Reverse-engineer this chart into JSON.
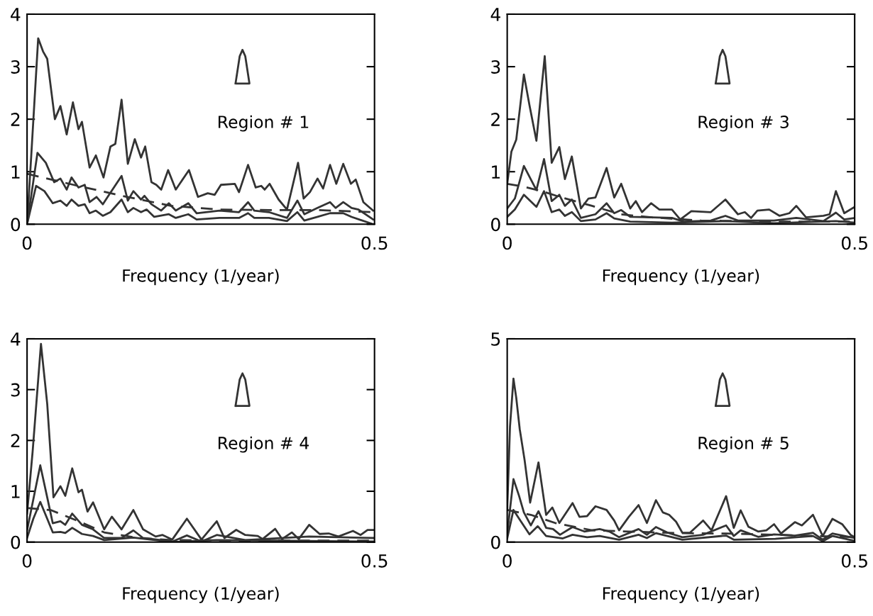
{
  "chart_data": [
    {
      "type": "line",
      "xlabel": "Frequency (1/year)",
      "annotations": [
        "Region # 1"
      ],
      "xlim": [
        0,
        0.5
      ],
      "xticks": [
        0,
        0.5
      ],
      "ylim": [
        0,
        4
      ],
      "yticks": [
        0,
        1,
        2,
        3,
        4
      ],
      "grid": false,
      "series": [
        {
          "color": "#333333",
          "line_style": "solid",
          "x": [
            0,
            0.006,
            0.016,
            0.023,
            0.029,
            0.04,
            0.048,
            0.057,
            0.066,
            0.074,
            0.079,
            0.09,
            0.099,
            0.11,
            0.12,
            0.127,
            0.136,
            0.145,
            0.155,
            0.164,
            0.17,
            0.179,
            0.186,
            0.193,
            0.203,
            0.214,
            0.233,
            0.246,
            0.26,
            0.27,
            0.279,
            0.299,
            0.305,
            0.318,
            0.329,
            0.337,
            0.342,
            0.349,
            0.362,
            0.374,
            0.39,
            0.398,
            0.407,
            0.418,
            0.426,
            0.436,
            0.445,
            0.455,
            0.466,
            0.473,
            0.484,
            0.498
          ],
          "values": [
            0,
            1.3,
            3.54,
            3.29,
            3.15,
            2.0,
            2.25,
            1.71,
            2.32,
            1.81,
            1.95,
            1.08,
            1.31,
            0.89,
            1.48,
            1.53,
            2.37,
            1.15,
            1.62,
            1.27,
            1.48,
            0.8,
            0.75,
            0.66,
            1.03,
            0.66,
            1.03,
            0.52,
            0.59,
            0.56,
            0.75,
            0.77,
            0.61,
            1.13,
            0.7,
            0.73,
            0.66,
            0.77,
            0.47,
            0.28,
            1.17,
            0.49,
            0.61,
            0.87,
            0.68,
            1.13,
            0.77,
            1.15,
            0.77,
            0.85,
            0.42,
            0.26
          ]
        },
        {
          "color": "#333333",
          "line_style": "solid",
          "x": [
            0,
            0.015,
            0.027,
            0.039,
            0.048,
            0.057,
            0.064,
            0.074,
            0.083,
            0.09,
            0.1,
            0.109,
            0.118,
            0.136,
            0.145,
            0.153,
            0.164,
            0.169,
            0.179,
            0.193,
            0.204,
            0.214,
            0.232,
            0.244,
            0.277,
            0.305,
            0.318,
            0.327,
            0.348,
            0.374,
            0.389,
            0.399,
            0.418,
            0.436,
            0.444,
            0.455,
            0.467,
            0.477,
            0.498
          ],
          "values": [
            0,
            1.36,
            1.17,
            0.8,
            0.87,
            0.66,
            0.89,
            0.7,
            0.75,
            0.42,
            0.52,
            0.38,
            0.56,
            0.92,
            0.45,
            0.63,
            0.47,
            0.54,
            0.38,
            0.26,
            0.4,
            0.26,
            0.4,
            0.21,
            0.26,
            0.23,
            0.42,
            0.26,
            0.23,
            0.12,
            0.45,
            0.19,
            0.31,
            0.42,
            0.31,
            0.42,
            0.31,
            0.28,
            0.09
          ]
        },
        {
          "color": "#333333",
          "line_style": "solid",
          "x": [
            0,
            0.013,
            0.025,
            0.037,
            0.048,
            0.057,
            0.064,
            0.074,
            0.083,
            0.09,
            0.099,
            0.109,
            0.12,
            0.136,
            0.145,
            0.153,
            0.164,
            0.172,
            0.183,
            0.204,
            0.214,
            0.232,
            0.244,
            0.277,
            0.305,
            0.318,
            0.327,
            0.348,
            0.374,
            0.389,
            0.399,
            0.418,
            0.436,
            0.455,
            0.467,
            0.498
          ],
          "values": [
            0,
            0.73,
            0.63,
            0.4,
            0.45,
            0.35,
            0.47,
            0.35,
            0.38,
            0.21,
            0.26,
            0.16,
            0.23,
            0.47,
            0.23,
            0.31,
            0.23,
            0.28,
            0.14,
            0.19,
            0.12,
            0.19,
            0.09,
            0.12,
            0.12,
            0.21,
            0.12,
            0.12,
            0.06,
            0.23,
            0.07,
            0.14,
            0.21,
            0.21,
            0.14,
            0.0
          ]
        },
        {
          "color": "#333333",
          "line_style": "dashed",
          "x": [
            0,
            0.067,
            0.137,
            0.207,
            0.277,
            0.348,
            0.418,
            0.498
          ],
          "values": [
            0.96,
            0.75,
            0.54,
            0.35,
            0.28,
            0.27,
            0.27,
            0.23
          ]
        }
      ]
    },
    {
      "type": "line",
      "xlabel": "Frequency (1/year)",
      "annotations": [
        "Region # 3"
      ],
      "xlim": [
        0,
        0.5
      ],
      "xticks": [
        0,
        0.5
      ],
      "ylim": [
        0,
        4
      ],
      "yticks": [
        0,
        1,
        2,
        3,
        4
      ],
      "grid": false,
      "series": [
        {
          "color": "#333333",
          "line_style": "solid",
          "x": [
            0,
            0.006,
            0.013,
            0.024,
            0.032,
            0.042,
            0.054,
            0.064,
            0.075,
            0.083,
            0.093,
            0.106,
            0.117,
            0.127,
            0.143,
            0.154,
            0.164,
            0.177,
            0.185,
            0.194,
            0.207,
            0.219,
            0.237,
            0.249,
            0.265,
            0.293,
            0.314,
            0.332,
            0.342,
            0.351,
            0.36,
            0.377,
            0.392,
            0.406,
            0.416,
            0.43,
            0.455,
            0.464,
            0.473,
            0.485,
            0.5
          ],
          "values": [
            0.77,
            1.38,
            1.61,
            2.85,
            2.27,
            1.59,
            3.2,
            1.17,
            1.47,
            0.86,
            1.29,
            0.3,
            0.49,
            0.51,
            1.07,
            0.51,
            0.77,
            0.3,
            0.44,
            0.23,
            0.4,
            0.28,
            0.28,
            0.09,
            0.25,
            0.23,
            0.47,
            0.19,
            0.23,
            0.12,
            0.26,
            0.28,
            0.16,
            0.21,
            0.35,
            0.13,
            0.16,
            0.19,
            0.63,
            0.21,
            0.33
          ]
        },
        {
          "color": "#333333",
          "line_style": "solid",
          "x": [
            0,
            0.011,
            0.024,
            0.042,
            0.053,
            0.064,
            0.075,
            0.083,
            0.093,
            0.106,
            0.127,
            0.143,
            0.154,
            0.164,
            0.177,
            0.208,
            0.237,
            0.254,
            0.293,
            0.314,
            0.332,
            0.384,
            0.416,
            0.455,
            0.473,
            0.485,
            0.5
          ],
          "values": [
            0.3,
            0.49,
            1.11,
            0.65,
            1.24,
            0.44,
            0.56,
            0.35,
            0.47,
            0.12,
            0.19,
            0.4,
            0.21,
            0.27,
            0.14,
            0.13,
            0.12,
            0.05,
            0.07,
            0.16,
            0.07,
            0.07,
            0.12,
            0.06,
            0.22,
            0.09,
            0.12
          ]
        },
        {
          "color": "#333333",
          "line_style": "solid",
          "x": [
            0,
            0.011,
            0.024,
            0.042,
            0.053,
            0.064,
            0.075,
            0.083,
            0.093,
            0.106,
            0.127,
            0.143,
            0.154,
            0.177,
            0.237,
            0.314,
            0.384,
            0.473,
            0.5
          ],
          "values": [
            0.14,
            0.28,
            0.56,
            0.33,
            0.63,
            0.23,
            0.28,
            0.16,
            0.23,
            0.06,
            0.09,
            0.21,
            0.11,
            0.05,
            0.03,
            0.06,
            0.02,
            0.06,
            0.03
          ]
        },
        {
          "color": "#333333",
          "line_style": "dashed",
          "x": [
            0,
            0.022,
            0.05,
            0.078,
            0.122,
            0.163,
            0.208,
            0.279,
            0.384,
            0.5
          ],
          "values": [
            0.77,
            0.72,
            0.63,
            0.51,
            0.35,
            0.19,
            0.13,
            0.07,
            0.05,
            0.05
          ]
        }
      ]
    },
    {
      "type": "line",
      "xlabel": "Frequency (1/year)",
      "annotations": [
        "Region # 4"
      ],
      "xlim": [
        0,
        0.5
      ],
      "xticks": [
        0,
        0.5
      ],
      "ylim": [
        0,
        4
      ],
      "yticks": [
        0,
        1,
        2,
        3,
        4
      ],
      "grid": false,
      "series": [
        {
          "color": "#333333",
          "line_style": "solid",
          "x": [
            0,
            0.008,
            0.02,
            0.029,
            0.038,
            0.048,
            0.055,
            0.065,
            0.074,
            0.079,
            0.087,
            0.095,
            0.111,
            0.122,
            0.136,
            0.153,
            0.167,
            0.185,
            0.195,
            0.209,
            0.23,
            0.251,
            0.273,
            0.284,
            0.301,
            0.314,
            0.332,
            0.339,
            0.357,
            0.367,
            0.381,
            0.391,
            0.406,
            0.421,
            0.434,
            0.448,
            0.469,
            0.48,
            0.49,
            0.5
          ],
          "values": [
            0.56,
            1.78,
            3.9,
            2.72,
            0.88,
            1.1,
            0.91,
            1.45,
            0.98,
            1.03,
            0.6,
            0.78,
            0.25,
            0.5,
            0.25,
            0.63,
            0.25,
            0.11,
            0.14,
            0.05,
            0.46,
            0.05,
            0.41,
            0.08,
            0.24,
            0.14,
            0.12,
            0.06,
            0.26,
            0.06,
            0.19,
            0.06,
            0.34,
            0.16,
            0.17,
            0.11,
            0.22,
            0.14,
            0.24,
            0.24
          ]
        },
        {
          "color": "#333333",
          "line_style": "solid",
          "x": [
            0,
            0.009,
            0.019,
            0.029,
            0.037,
            0.048,
            0.055,
            0.065,
            0.079,
            0.095,
            0.111,
            0.136,
            0.153,
            0.167,
            0.209,
            0.23,
            0.251,
            0.273,
            0.314,
            0.406,
            0.5
          ],
          "values": [
            0.23,
            0.84,
            1.51,
            0.88,
            0.37,
            0.41,
            0.34,
            0.56,
            0.34,
            0.25,
            0.08,
            0.08,
            0.23,
            0.08,
            0.01,
            0.13,
            0.01,
            0.14,
            0.04,
            0.11,
            0.08
          ]
        },
        {
          "color": "#333333",
          "line_style": "solid",
          "x": [
            0,
            0.009,
            0.019,
            0.029,
            0.037,
            0.048,
            0.055,
            0.065,
            0.079,
            0.095,
            0.111,
            0.153,
            0.209,
            0.273,
            0.5
          ],
          "values": [
            0.08,
            0.46,
            0.79,
            0.46,
            0.19,
            0.2,
            0.18,
            0.28,
            0.16,
            0.12,
            0.04,
            0.09,
            0.0,
            0.04,
            0.01
          ]
        },
        {
          "color": "#333333",
          "line_style": "dashed",
          "x": [
            0,
            0.034,
            0.069,
            0.111,
            0.16,
            0.209,
            0.314,
            0.5
          ],
          "values": [
            0.67,
            0.63,
            0.44,
            0.19,
            0.08,
            0.04,
            0.03,
            0.03
          ]
        }
      ]
    },
    {
      "type": "line",
      "xlabel": "Frequency (1/year)",
      "annotations": [
        "Region # 5"
      ],
      "xlim": [
        0,
        0.5
      ],
      "xticks": [
        0,
        0.5
      ],
      "ylim": [
        0,
        5
      ],
      "yticks": [
        0,
        5
      ],
      "grid": false,
      "series": [
        {
          "color": "#333333",
          "line_style": "solid",
          "x": [
            0,
            0.004,
            0.009,
            0.013,
            0.018,
            0.025,
            0.033,
            0.045,
            0.056,
            0.065,
            0.075,
            0.094,
            0.104,
            0.115,
            0.127,
            0.143,
            0.154,
            0.161,
            0.175,
            0.189,
            0.201,
            0.214,
            0.224,
            0.233,
            0.243,
            0.252,
            0.263,
            0.282,
            0.294,
            0.315,
            0.326,
            0.336,
            0.347,
            0.361,
            0.373,
            0.384,
            0.394,
            0.414,
            0.424,
            0.44,
            0.454,
            0.468,
            0.482,
            0.494,
            0.5
          ],
          "values": [
            0.79,
            2.84,
            4.02,
            3.55,
            2.78,
            2.02,
            0.97,
            1.96,
            0.67,
            0.85,
            0.47,
            0.96,
            0.62,
            0.64,
            0.88,
            0.79,
            0.53,
            0.29,
            0.62,
            0.91,
            0.47,
            1.03,
            0.73,
            0.67,
            0.5,
            0.23,
            0.23,
            0.53,
            0.29,
            1.13,
            0.35,
            0.78,
            0.38,
            0.26,
            0.29,
            0.44,
            0.21,
            0.49,
            0.41,
            0.67,
            0.15,
            0.57,
            0.44,
            0.18,
            0.12
          ]
        },
        {
          "color": "#333333",
          "line_style": "solid",
          "x": [
            0,
            0.009,
            0.017,
            0.024,
            0.034,
            0.045,
            0.056,
            0.066,
            0.076,
            0.094,
            0.111,
            0.133,
            0.147,
            0.161,
            0.189,
            0.201,
            0.214,
            0.231,
            0.252,
            0.282,
            0.315,
            0.326,
            0.336,
            0.361,
            0.384,
            0.414,
            0.44,
            0.454,
            0.468,
            0.5
          ],
          "values": [
            0.21,
            1.55,
            1.14,
            0.73,
            0.41,
            0.76,
            0.35,
            0.32,
            0.18,
            0.37,
            0.26,
            0.32,
            0.26,
            0.12,
            0.32,
            0.18,
            0.37,
            0.23,
            0.12,
            0.18,
            0.41,
            0.15,
            0.29,
            0.13,
            0.19,
            0.16,
            0.23,
            0.06,
            0.21,
            0.1
          ]
        },
        {
          "color": "#333333",
          "line_style": "solid",
          "x": [
            0,
            0.009,
            0.02,
            0.032,
            0.044,
            0.056,
            0.08,
            0.094,
            0.115,
            0.133,
            0.161,
            0.189,
            0.201,
            0.214,
            0.252,
            0.315,
            0.326,
            0.386,
            0.44,
            0.454,
            0.468,
            0.5
          ],
          "values": [
            0.09,
            0.79,
            0.5,
            0.19,
            0.39,
            0.15,
            0.09,
            0.18,
            0.12,
            0.15,
            0.06,
            0.18,
            0.1,
            0.22,
            0.06,
            0.16,
            0.06,
            0.08,
            0.15,
            0.02,
            0.15,
            0.03
          ]
        },
        {
          "color": "#333333",
          "line_style": "dashed",
          "x": [
            0,
            0.034,
            0.069,
            0.122,
            0.175,
            0.245,
            0.315,
            0.386,
            0.5
          ],
          "values": [
            0.79,
            0.67,
            0.47,
            0.29,
            0.26,
            0.22,
            0.21,
            0.18,
            0.12
          ]
        }
      ]
    }
  ]
}
